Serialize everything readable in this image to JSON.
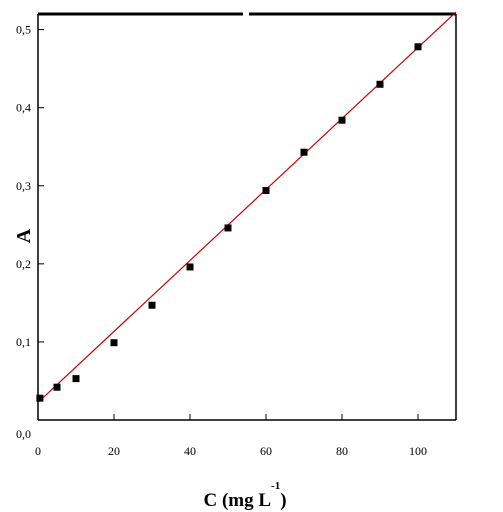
{
  "chart_data": {
    "type": "scatter",
    "xlabel": "C (mg L",
    "xlabel_superscript": "-1",
    "xlabel_close": ")",
    "ylabel": "A",
    "xlim": [
      0,
      110
    ],
    "ylim": [
      0.0,
      0.52
    ],
    "xticks": [
      0,
      20,
      40,
      60,
      80,
      100
    ],
    "xtick_labels": [
      "0",
      "20",
      "40",
      "60",
      "80",
      "100"
    ],
    "yticks": [
      0.0,
      0.1,
      0.2,
      0.3,
      0.4,
      0.5
    ],
    "ytick_labels": [
      "0,0",
      "0,1",
      "0,2",
      "0,3",
      "0,4",
      "0,5"
    ],
    "grid": false,
    "series": [
      {
        "x": [
          0.5,
          5,
          10,
          20,
          30,
          40,
          50,
          60,
          70,
          80,
          90,
          100
        ],
        "y": [
          0.028,
          0.042,
          0.053,
          0.099,
          0.147,
          0.196,
          0.246,
          0.294,
          0.343,
          0.384,
          0.43,
          0.478
        ],
        "color": "#000000"
      }
    ],
    "fit_line": {
      "x": [
        0,
        110
      ],
      "y": [
        0.0225,
        0.5225
      ],
      "color": "#cc0000"
    }
  }
}
